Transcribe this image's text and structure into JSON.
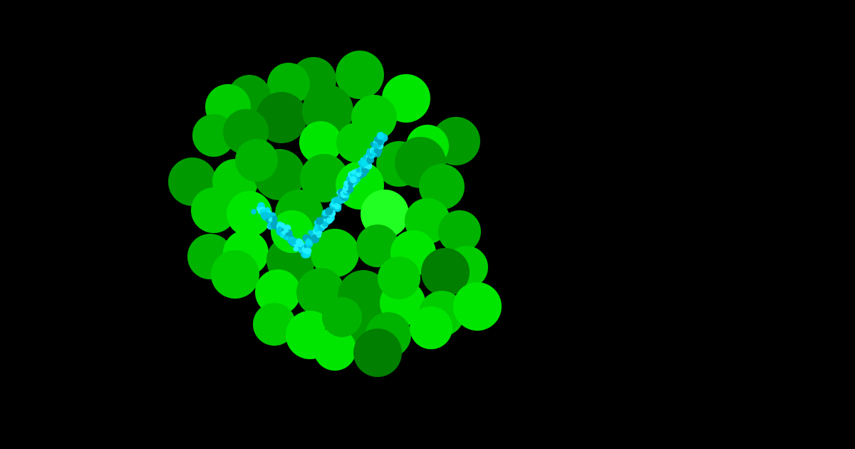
{
  "scene": {
    "background": "#000000",
    "subject": "green-bubble-cluster-with-checkmark",
    "cluster_colors": [
      "#007f00",
      "#009a00",
      "#00b300",
      "#00cc00",
      "#00e600",
      "#22ff22"
    ],
    "checkmark_colors": [
      "#00c8e0",
      "#00e0f0",
      "#20f0ff",
      "#00a8c0"
    ],
    "icon": "check-icon"
  }
}
